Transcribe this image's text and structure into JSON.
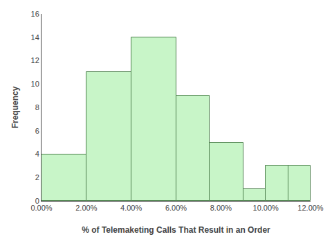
{
  "chart_data": {
    "type": "histogram",
    "bins": [
      0.0,
      2.0,
      4.0,
      6.0,
      7.5,
      9.0,
      10.0,
      11.0,
      12.0
    ],
    "values": [
      4,
      11,
      14,
      9,
      5,
      1,
      3,
      3
    ],
    "color": "#c8f5c8",
    "xlabel": "% of Telemaketing Calls That Result in an Order",
    "ylabel": "Frequency",
    "xlim": [
      0.0,
      12.0
    ],
    "ylim": [
      0,
      16
    ],
    "xticks": [
      {
        "value": 0.0,
        "label": "0.00%"
      },
      {
        "value": 2.0,
        "label": "2.00%"
      },
      {
        "value": 4.0,
        "label": "4.00%"
      },
      {
        "value": 6.0,
        "label": "6.00%"
      },
      {
        "value": 8.0,
        "label": "8.00%"
      },
      {
        "value": 10.0,
        "label": "10.00%"
      },
      {
        "value": 12.0,
        "label": "12.00%"
      }
    ],
    "yticks": [
      0,
      2,
      4,
      6,
      8,
      10,
      12,
      14,
      16
    ],
    "grid": false
  }
}
